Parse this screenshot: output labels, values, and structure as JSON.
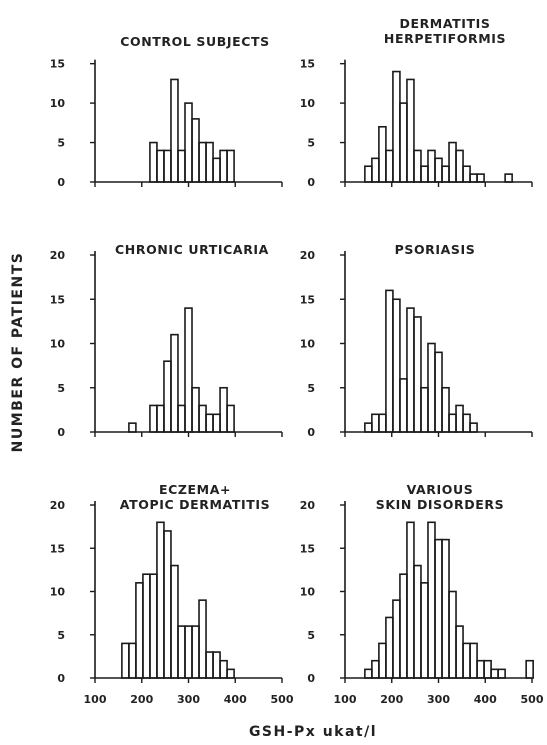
{
  "figure": {
    "ylabel": "NUMBER OF PATIENTS",
    "xlabel": "GSH-Px  ukat/l"
  },
  "chart_data": [
    {
      "type": "bar",
      "title_lines": [
        "CONTROL SUBJECTS"
      ],
      "ylim": [
        0,
        18
      ],
      "yticks": [
        0,
        5,
        10,
        15
      ],
      "xlim": [
        100,
        500
      ],
      "xticks": [
        100,
        200,
        300,
        400,
        500
      ],
      "bin_width": 15,
      "x": [
        225,
        240,
        255,
        270,
        285,
        300,
        315,
        330,
        345,
        360,
        375,
        390,
        405
      ],
      "values": [
        5,
        4,
        4,
        13,
        4,
        10,
        8,
        5,
        5,
        3,
        4,
        4,
        0
      ]
    },
    {
      "type": "bar",
      "title_lines": [
        "DERMATITIS",
        "HERPETIFORMIS"
      ],
      "ylim": [
        0,
        18
      ],
      "yticks": [
        0,
        5,
        10,
        15
      ],
      "xlim": [
        100,
        500
      ],
      "xticks": [
        100,
        200,
        300,
        400,
        500
      ],
      "bin_width": 15,
      "x": [
        150,
        165,
        180,
        195,
        210,
        225,
        240,
        255,
        270,
        285,
        300,
        315,
        330,
        345,
        360,
        375,
        390,
        405,
        420,
        435,
        450,
        465
      ],
      "values": [
        2,
        3,
        7,
        4,
        14,
        10,
        13,
        4,
        2,
        4,
        3,
        2,
        5,
        4,
        2,
        1,
        1,
        0,
        0,
        0,
        1,
        0
      ]
    },
    {
      "type": "bar",
      "title_lines": [
        "CHRONIC URTICARIA"
      ],
      "ylim": [
        0,
        20
      ],
      "yticks": [
        0,
        5,
        10,
        15,
        20
      ],
      "xlim": [
        100,
        500
      ],
      "xticks": [
        100,
        200,
        300,
        400,
        500
      ],
      "bin_width": 15,
      "x": [
        180,
        195,
        210,
        225,
        240,
        255,
        270,
        285,
        300,
        315,
        330,
        345,
        360,
        375,
        390,
        405
      ],
      "values": [
        1,
        0,
        0,
        3,
        3,
        8,
        11,
        3,
        14,
        5,
        3,
        2,
        2,
        5,
        3,
        0
      ]
    },
    {
      "type": "bar",
      "title_lines": [
        "PSORIASIS"
      ],
      "ylim": [
        0,
        20
      ],
      "yticks": [
        0,
        5,
        10,
        15,
        20
      ],
      "xlim": [
        100,
        500
      ],
      "xticks": [
        100,
        200,
        300,
        400,
        500
      ],
      "bin_width": 15,
      "x": [
        150,
        165,
        180,
        195,
        210,
        225,
        240,
        255,
        270,
        285,
        300,
        315,
        330,
        345,
        360,
        375,
        390,
        405
      ],
      "values": [
        1,
        2,
        2,
        16,
        15,
        6,
        14,
        13,
        5,
        10,
        9,
        5,
        2,
        3,
        2,
        1,
        0,
        0
      ]
    },
    {
      "type": "bar",
      "title_lines": [
        "ECZEMA+",
        "ATOPIC DERMATITIS"
      ],
      "ylim": [
        0,
        20
      ],
      "yticks": [
        0,
        5,
        10,
        15,
        20
      ],
      "xlim": [
        100,
        500
      ],
      "xticks": [
        100,
        200,
        300,
        400,
        500
      ],
      "bin_width": 15,
      "x": [
        165,
        180,
        195,
        210,
        225,
        240,
        255,
        270,
        285,
        300,
        315,
        330,
        345,
        360,
        375,
        390,
        405
      ],
      "values": [
        4,
        4,
        11,
        12,
        12,
        18,
        17,
        13,
        6,
        6,
        6,
        9,
        3,
        3,
        2,
        1,
        0
      ]
    },
    {
      "type": "bar",
      "title_lines": [
        "VARIOUS",
        "SKIN DISORDERS"
      ],
      "ylim": [
        0,
        20
      ],
      "yticks": [
        0,
        5,
        10,
        15,
        20
      ],
      "xlim": [
        100,
        500
      ],
      "xticks": [
        100,
        200,
        300,
        400,
        500
      ],
      "bin_width": 15,
      "x": [
        150,
        165,
        180,
        195,
        210,
        225,
        240,
        255,
        270,
        285,
        300,
        315,
        330,
        345,
        360,
        375,
        390,
        405,
        420,
        435,
        450,
        465,
        480,
        495
      ],
      "values": [
        1,
        2,
        4,
        7,
        9,
        12,
        18,
        13,
        11,
        18,
        16,
        16,
        10,
        6,
        4,
        4,
        2,
        2,
        1,
        1,
        0,
        0,
        0,
        2
      ]
    }
  ]
}
